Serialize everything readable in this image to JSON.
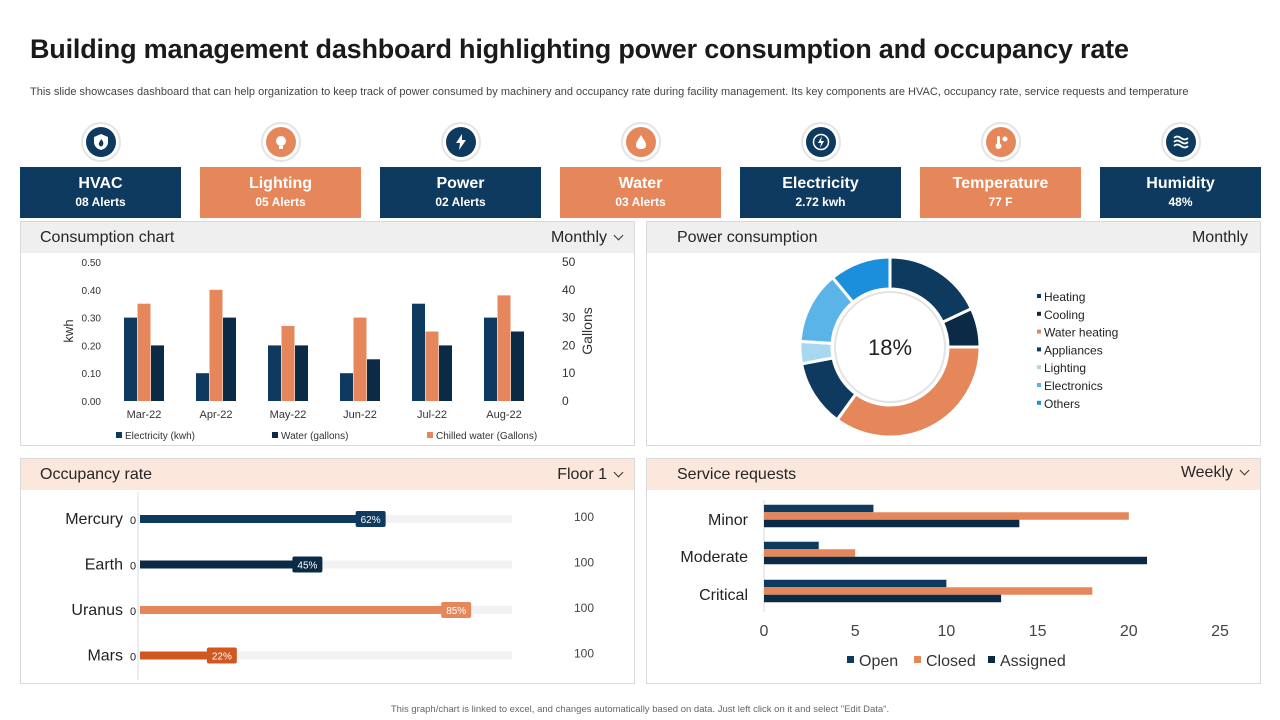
{
  "title": "Building management dashboard highlighting power consumption and occupancy rate",
  "subtitle": "This slide showcases dashboard that can help organization to keep track of power consumed by machinery and occupancy rate during facility management. Its key components are HVAC, occupancy rate, service requests and temperature",
  "footer": "This graph/chart is linked to excel, and changes automatically based on data. Just left click on it and select \"Edit Data\".",
  "colors": {
    "navy": "#0f3a5f",
    "orange": "#e5875a",
    "dark_navy": "#0b2a45",
    "rust": "#d0571f"
  },
  "kpis": [
    {
      "name": "HVAC",
      "value": "08 Alerts",
      "icon": "flame-shield-icon",
      "style": "dark"
    },
    {
      "name": "Lighting",
      "value": "05 Alerts",
      "icon": "lightbulb-icon",
      "style": "orange"
    },
    {
      "name": "Power",
      "value": "02 Alerts",
      "icon": "lightning-bolt-icon",
      "style": "dark"
    },
    {
      "name": "Water",
      "value": "03 Alerts",
      "icon": "water-drop-icon",
      "style": "orange"
    },
    {
      "name": "Electricity",
      "value": "2.72 kwh",
      "icon": "electric-bolt-icon",
      "style": "dark"
    },
    {
      "name": "Temperature",
      "value": "77 F",
      "icon": "thermometer-sun-icon",
      "style": "orange"
    },
    {
      "name": "Humidity",
      "value": "48%",
      "icon": "waves-icon",
      "style": "dark"
    }
  ],
  "panels": {
    "consumption": {
      "title": "Consumption chart",
      "period": "Monthly"
    },
    "power": {
      "title": "Power consumption",
      "period": "Monthly"
    },
    "occupancy": {
      "title": "Occupancy rate",
      "period": "Floor 1"
    },
    "service": {
      "title": "Service requests",
      "period": "Weekly"
    }
  },
  "chart_data": [
    {
      "id": "consumption",
      "type": "bar",
      "categories": [
        "Mar-22",
        "Apr-22",
        "May-22",
        "Jun-22",
        "Jul-22",
        "Aug-22"
      ],
      "ylabel": "kwh",
      "y2label": "Gallons",
      "ylim": [
        0,
        0.5
      ],
      "y2lim": [
        0,
        50
      ],
      "yticks": [
        "0.00",
        "0.10",
        "0.20",
        "0.30",
        "0.40",
        "0.50"
      ],
      "y2ticks": [
        "0",
        "10",
        "20",
        "30",
        "40",
        "50"
      ],
      "series": [
        {
          "name": "Electricity (kwh)",
          "color": "#0f3a5f",
          "values": [
            0.3,
            0.1,
            0.2,
            0.1,
            0.35,
            0.3
          ]
        },
        {
          "name": "Chilled water (Gallons)",
          "color": "#e5875a",
          "values": [
            0.35,
            0.4,
            0.27,
            0.3,
            0.25,
            0.38
          ]
        },
        {
          "name": "Water (gallons)",
          "color": "#0b2a45",
          "values": [
            0.2,
            0.3,
            0.2,
            0.15,
            0.2,
            0.25
          ]
        }
      ],
      "legend": [
        "Electricity (kwh)",
        "Water (gallons)",
        "Chilled water (Gallons)"
      ],
      "legend_colors": [
        "#0f3a5f",
        "#0b2a45",
        "#e5875a"
      ]
    },
    {
      "id": "power",
      "type": "pie",
      "center_label": "18%",
      "slices": [
        {
          "name": "Heating",
          "value": 18,
          "color": "#0f3a5f"
        },
        {
          "name": "Cooling",
          "value": 7,
          "color": "#0b2a45"
        },
        {
          "name": "Water heating",
          "value": 35,
          "color": "#e5875a"
        },
        {
          "name": "Appliances",
          "value": 12,
          "color": "#0f3a5f"
        },
        {
          "name": "Lighting",
          "value": 4,
          "color": "#a8d8f0"
        },
        {
          "name": "Electronics",
          "value": 13,
          "color": "#5ab4e8"
        },
        {
          "name": "Others",
          "value": 11,
          "color": "#1c8fdc"
        }
      ]
    },
    {
      "id": "occupancy",
      "type": "bar",
      "orientation": "horizontal",
      "rows": [
        {
          "name": "Mercury",
          "value": 62,
          "max": "100",
          "start": "0",
          "label": "62%",
          "color": "#0f3a5f"
        },
        {
          "name": "Earth",
          "value": 45,
          "max": "100",
          "start": "0",
          "label": "45%",
          "color": "#0b2a45"
        },
        {
          "name": "Uranus",
          "value": 85,
          "max": "100",
          "start": "0",
          "label": "85%",
          "color": "#e5875a"
        },
        {
          "name": "Mars",
          "value": 22,
          "max": "100",
          "start": "0",
          "label": "22%",
          "color": "#d0571f"
        }
      ]
    },
    {
      "id": "service",
      "type": "bar",
      "orientation": "horizontal",
      "categories": [
        "Minor",
        "Moderate",
        "Critical"
      ],
      "xlim": [
        0,
        25
      ],
      "xticks": [
        "0",
        "5",
        "10",
        "15",
        "20",
        "25"
      ],
      "series": [
        {
          "name": "Open",
          "color": "#0f3a5f",
          "values": [
            6,
            3,
            10
          ]
        },
        {
          "name": "Closed",
          "color": "#e5875a",
          "values": [
            20,
            5,
            18
          ]
        },
        {
          "name": "Assigned",
          "color": "#0b2a45",
          "values": [
            14,
            21,
            13
          ]
        }
      ]
    }
  ]
}
